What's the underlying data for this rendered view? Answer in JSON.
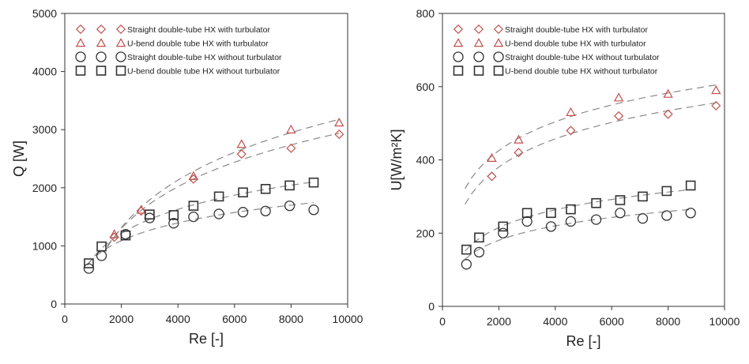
{
  "colors": {
    "turbulator": "#c0504d",
    "plain": "#333333",
    "fit_line": "#8a8a8a",
    "axis": "#333333"
  },
  "chart_data": [
    {
      "type": "scatter",
      "xlabel": "Re [-]",
      "ylabel": "Q [W]",
      "xlim": [
        0,
        10000
      ],
      "ylim": [
        0,
        5000
      ],
      "xticks": [
        "0",
        "2000",
        "4000",
        "6000",
        "8000",
        "10000"
      ],
      "yticks": [
        "0",
        "1000",
        "2000",
        "3000",
        "4000",
        "5000"
      ],
      "legend_position": "top-left",
      "series": [
        {
          "name": "Straight double-tube HX with turbulator",
          "marker": "diamond-icon",
          "color": "#c0504d",
          "x": [
            1750,
            2700,
            4550,
            6250,
            8000,
            9700
          ],
          "y": [
            1150,
            1600,
            2150,
            2580,
            2680,
            2920
          ]
        },
        {
          "name": "U-bend double tube HX with turbulator",
          "marker": "triangle-icon",
          "color": "#c0504d",
          "x": [
            1750,
            2700,
            4550,
            6250,
            8000,
            9700
          ],
          "y": [
            1200,
            1620,
            2200,
            2750,
            3000,
            3120
          ]
        },
        {
          "name": "Straight double-tube HX without turbulator",
          "marker": "circle-icon",
          "color": "#333333",
          "x": [
            850,
            1300,
            2150,
            3000,
            3850,
            4550,
            5450,
            6300,
            7100,
            7950,
            8800
          ],
          "y": [
            610,
            830,
            1200,
            1480,
            1390,
            1500,
            1550,
            1580,
            1600,
            1690,
            1620
          ]
        },
        {
          "name": "U-bend double tube HX without turbulator",
          "marker": "square-icon",
          "color": "#333333",
          "x": [
            850,
            1300,
            2150,
            3000,
            3850,
            4550,
            5450,
            6300,
            7100,
            7950,
            8800
          ],
          "y": [
            700,
            990,
            1180,
            1540,
            1530,
            1690,
            1850,
            1920,
            1980,
            2040,
            2090
          ]
        }
      ],
      "fit_lines": [
        {
          "series": 0,
          "x": [
            1500,
            9700
          ]
        },
        {
          "series": 1,
          "x": [
            1500,
            9700
          ]
        },
        {
          "series": 2,
          "x": [
            800,
            8800
          ]
        },
        {
          "series": 3,
          "x": [
            800,
            8800
          ]
        }
      ]
    },
    {
      "type": "scatter",
      "xlabel": "Re [-]",
      "ylabel": "U[W/m²K]",
      "xlim": [
        0,
        10000
      ],
      "ylim": [
        0,
        800
      ],
      "xticks": [
        "0",
        "2000",
        "4000",
        "6000",
        "8000",
        "10000"
      ],
      "yticks": [
        "0",
        "200",
        "400",
        "600",
        "800"
      ],
      "legend_position": "top-left",
      "series": [
        {
          "name": "Straight double-tube HX with turbulator",
          "marker": "diamond-icon",
          "color": "#c0504d",
          "x": [
            1750,
            2700,
            4550,
            6250,
            8000,
            9700
          ],
          "y": [
            355,
            420,
            480,
            520,
            525,
            548
          ]
        },
        {
          "name": "U-bend double tube HX with turbulator",
          "marker": "triangle-icon",
          "color": "#c0504d",
          "x": [
            1750,
            2700,
            4550,
            6250,
            8000,
            9700
          ],
          "y": [
            405,
            455,
            530,
            570,
            580,
            590
          ]
        },
        {
          "name": "Straight double-tube HX without turbulator",
          "marker": "circle-icon",
          "color": "#333333",
          "x": [
            850,
            1300,
            2150,
            3000,
            3850,
            4550,
            5450,
            6300,
            7100,
            7950,
            8800
          ],
          "y": [
            115,
            148,
            200,
            232,
            218,
            232,
            237,
            255,
            240,
            248,
            255
          ]
        },
        {
          "name": "U-bend double tube HX without turbulator",
          "marker": "square-icon",
          "color": "#333333",
          "x": [
            850,
            1300,
            2150,
            3000,
            3850,
            4550,
            5450,
            6300,
            7100,
            7950,
            8800
          ],
          "y": [
            155,
            188,
            218,
            255,
            255,
            265,
            282,
            290,
            300,
            315,
            330
          ]
        }
      ],
      "fit_lines": [
        {
          "series": 0,
          "x": [
            800,
            9700
          ]
        },
        {
          "series": 1,
          "x": [
            800,
            9700
          ]
        },
        {
          "series": 2,
          "x": [
            800,
            8800
          ]
        },
        {
          "series": 3,
          "x": [
            800,
            8800
          ]
        }
      ]
    }
  ]
}
